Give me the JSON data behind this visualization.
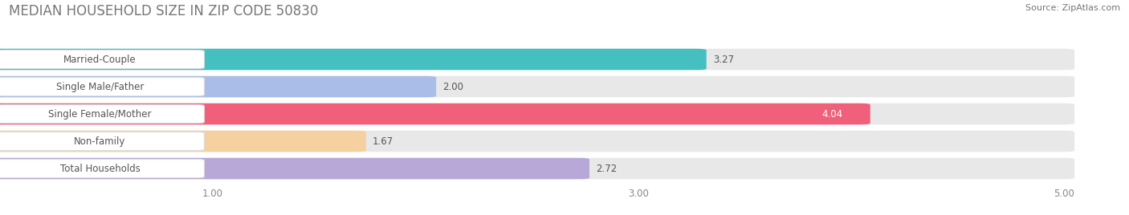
{
  "title": "MEDIAN HOUSEHOLD SIZE IN ZIP CODE 50830",
  "source": "Source: ZipAtlas.com",
  "categories": [
    "Married-Couple",
    "Single Male/Father",
    "Single Female/Mother",
    "Non-family",
    "Total Households"
  ],
  "values": [
    3.27,
    2.0,
    4.04,
    1.67,
    2.72
  ],
  "bar_colors": [
    "#45bfbf",
    "#aabde8",
    "#f0607a",
    "#f5d0a0",
    "#b8a8d8"
  ],
  "xlim": [
    0,
    5.2
  ],
  "xmin": 0.0,
  "xticks": [
    1.0,
    3.0,
    5.0
  ],
  "background_color": "#ffffff",
  "bar_bg_color": "#e8e8e8",
  "label_box_color": "#ffffff",
  "title_fontsize": 12,
  "label_fontsize": 8.5,
  "value_fontsize": 8.5,
  "source_fontsize": 8,
  "bar_height": 0.68,
  "title_color": "#777777",
  "source_color": "#777777",
  "label_color": "#555555",
  "value_color_light": "#555555",
  "value_color_dark": "#ffffff"
}
